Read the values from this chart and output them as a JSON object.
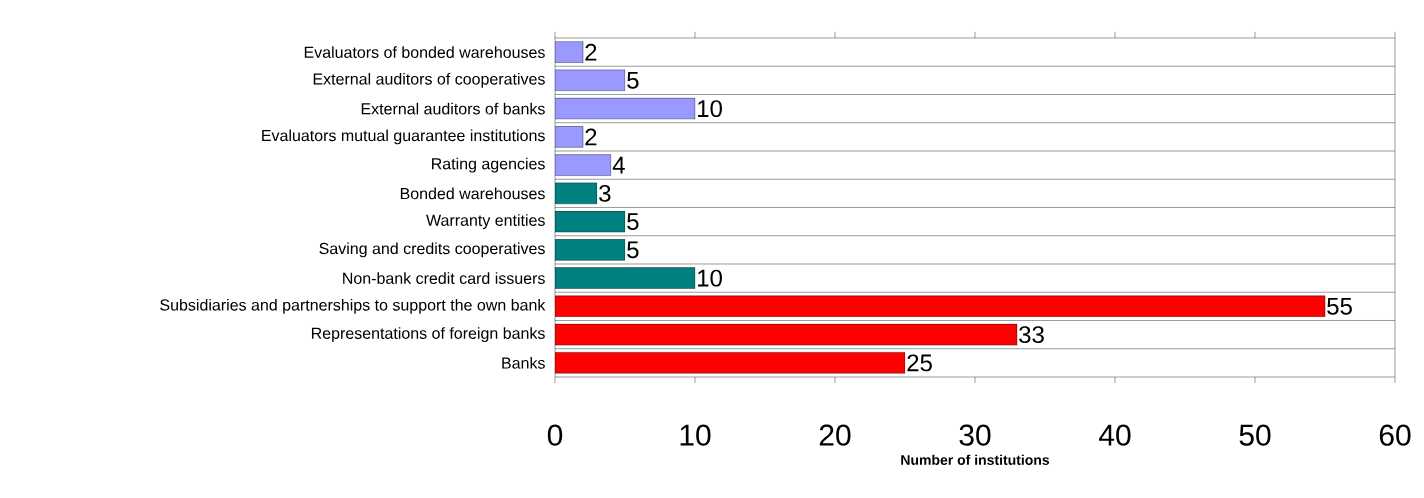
{
  "chart_data": {
    "type": "bar",
    "orientation": "horizontal",
    "xlabel": "Number of institutions",
    "categories": [
      "Evaluators of bonded warehouses",
      "External auditors of cooperatives",
      "External auditors of banks",
      "Evaluators mutual guarantee institutions",
      "Rating agencies",
      "Bonded warehouses",
      "Warranty entities",
      "Saving and credits cooperatives",
      "Non-bank credit card issuers",
      "Subsidiaries and partnerships to support the own bank",
      "Representations of foreign banks",
      "Banks"
    ],
    "values": [
      2,
      5,
      10,
      2,
      4,
      3,
      5,
      5,
      10,
      55,
      33,
      25
    ],
    "colors": [
      "#9999ff",
      "#9999ff",
      "#9999ff",
      "#9999ff",
      "#9999ff",
      "#008080",
      "#008080",
      "#008080",
      "#008080",
      "#ff0000",
      "#ff0000",
      "#ff0000"
    ],
    "xlim": [
      0,
      60
    ],
    "xticks": [
      0,
      10,
      20,
      30,
      40,
      50,
      60
    ],
    "grid": "y",
    "data_labels": true
  }
}
